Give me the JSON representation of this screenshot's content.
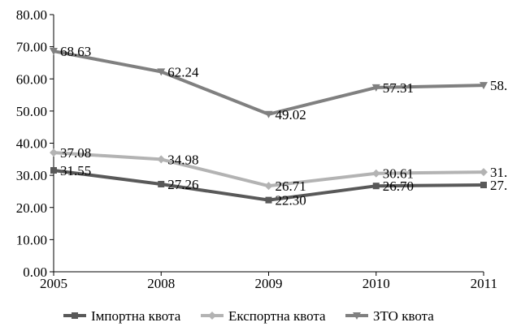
{
  "chart_data": {
    "type": "line",
    "categories": [
      "2005",
      "2008",
      "2009",
      "2010",
      "2011"
    ],
    "y_ticks": [
      "0.00",
      "10.00",
      "20.00",
      "30.00",
      "40.00",
      "50.00",
      "60.00",
      "70.00",
      "80.00"
    ],
    "ylim": [
      0,
      80
    ],
    "grid": false,
    "legend_position": "bottom",
    "series": [
      {
        "name": "Імпортна квота",
        "values": [
          31.55,
          27.26,
          22.3,
          26.7,
          27.0
        ],
        "labels": [
          "31.55",
          "27.26",
          "22.30",
          "26.70",
          "27."
        ],
        "color": "#595959",
        "marker": "square"
      },
      {
        "name": "Експортна квота",
        "values": [
          37.08,
          34.98,
          26.71,
          30.61,
          31.0
        ],
        "labels": [
          "37.08",
          "34.98",
          "26.71",
          "30.61",
          "31."
        ],
        "color": "#b3b3b3",
        "marker": "diamond"
      },
      {
        "name": "ЗТО квота",
        "values": [
          68.63,
          62.24,
          49.02,
          57.31,
          58.0
        ],
        "labels": [
          "68.63",
          "62.24",
          "49.02",
          "57.31",
          "58."
        ],
        "color": "#808080",
        "marker": "triangle-down"
      }
    ]
  }
}
